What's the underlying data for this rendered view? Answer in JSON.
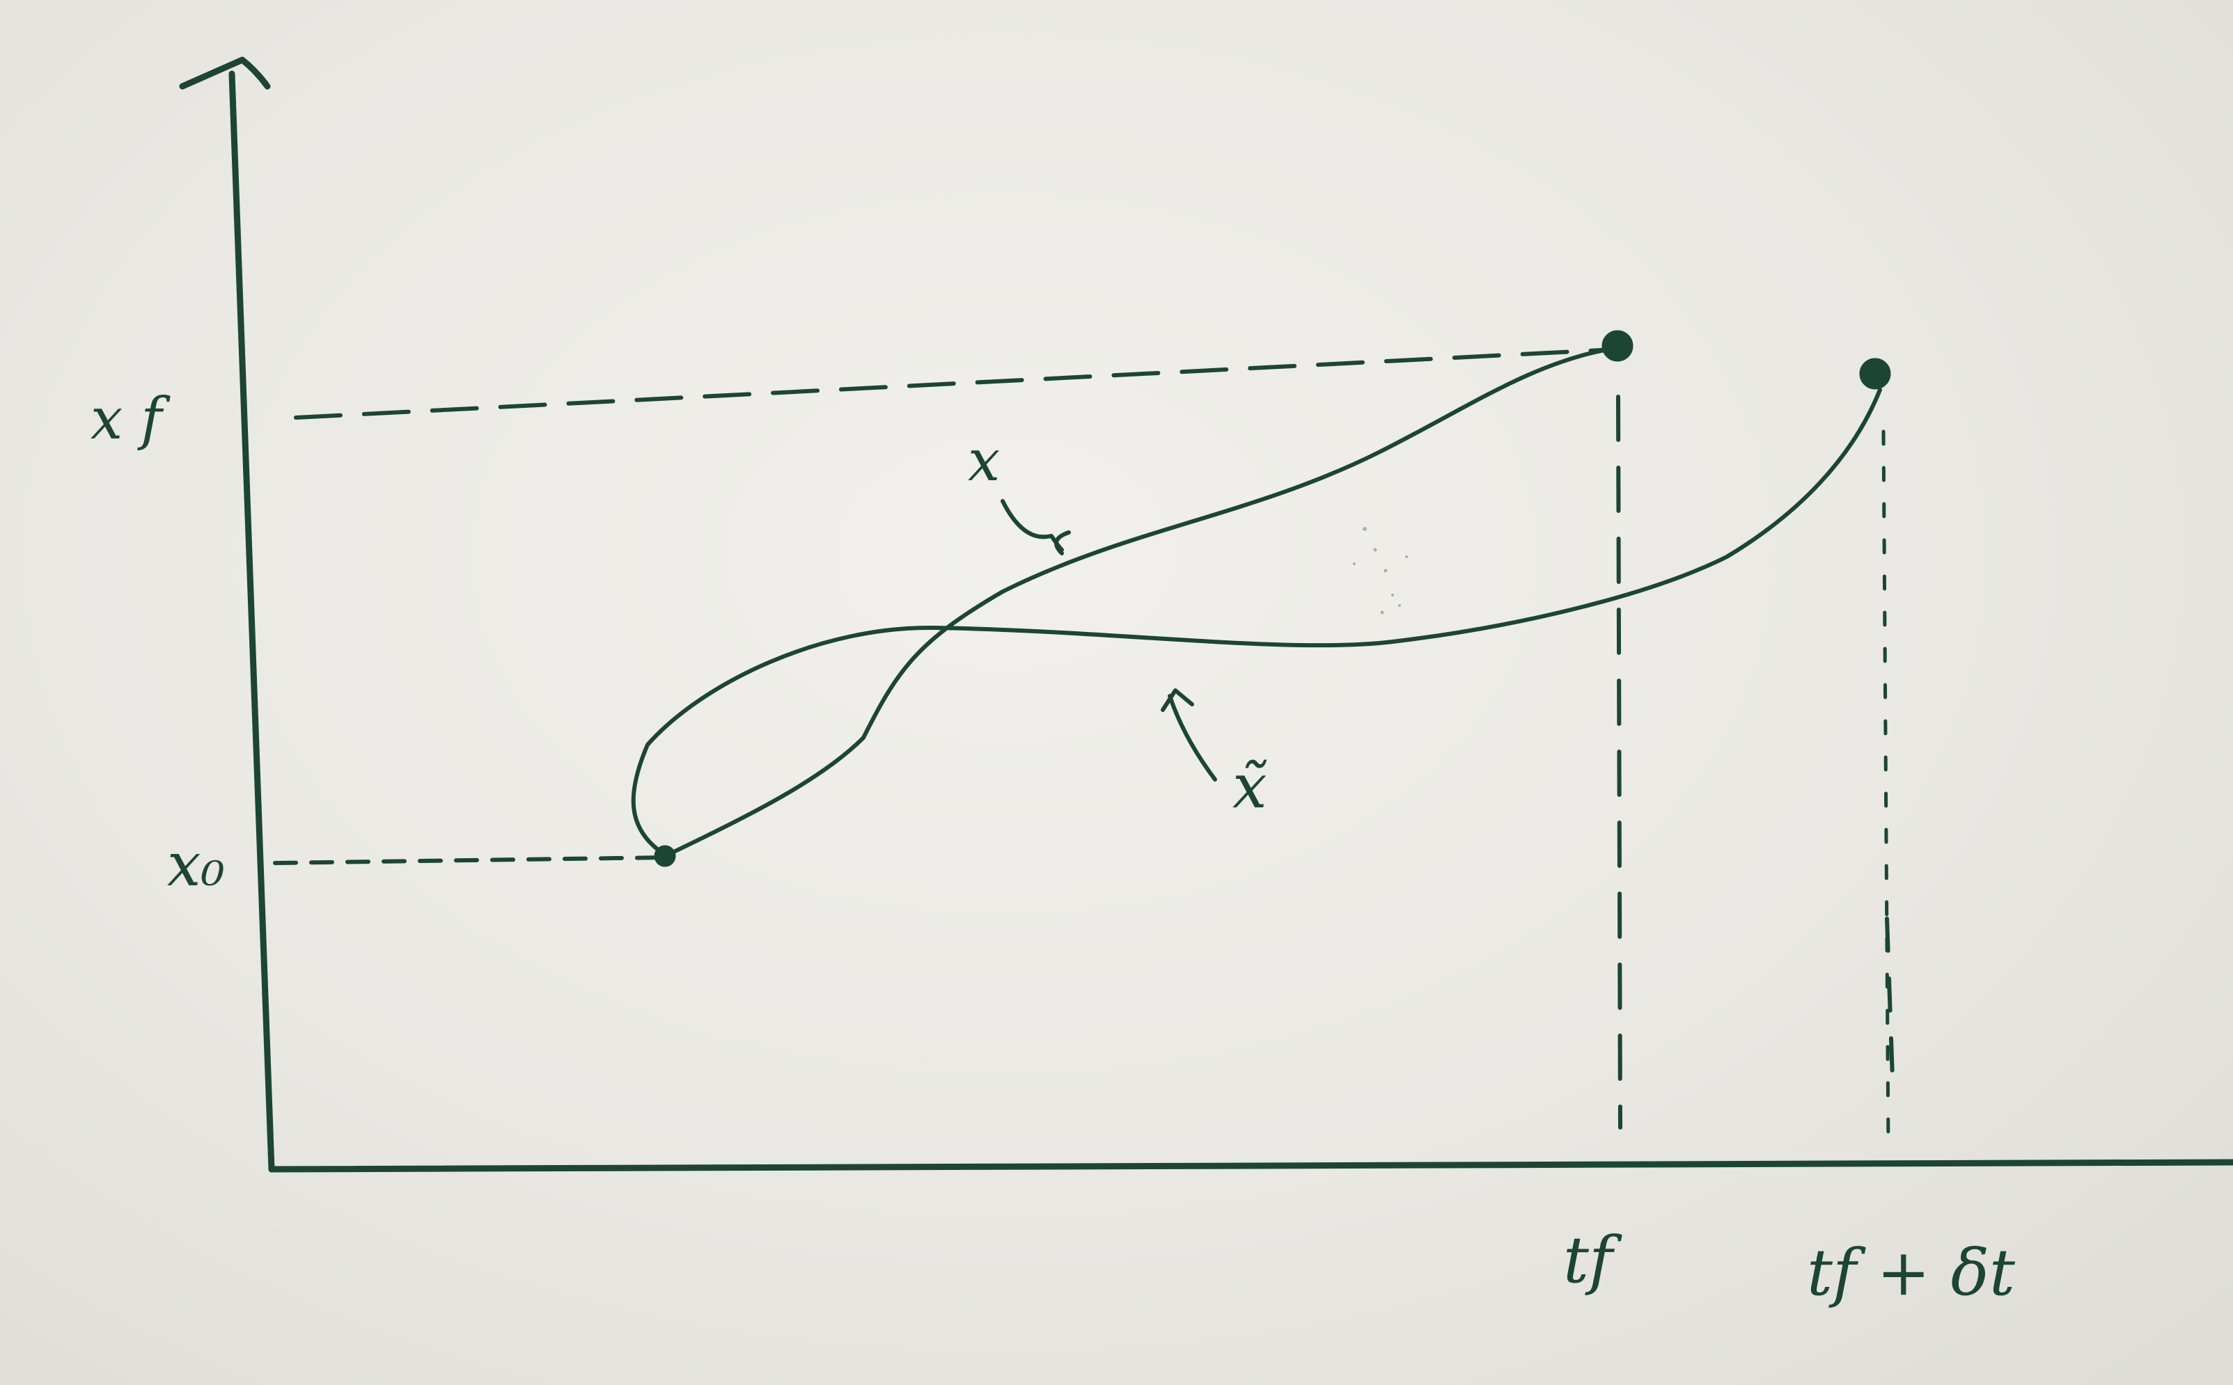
{
  "colors": {
    "ink": "#1c4535",
    "paper": "#ecebe6"
  },
  "labels": {
    "x_f": "x f",
    "x_0": "x₀",
    "t_f": "tf",
    "t_f_plus_dt": "tf + δt",
    "curve_x": "x",
    "curve_x_tilde": "x̃"
  }
}
